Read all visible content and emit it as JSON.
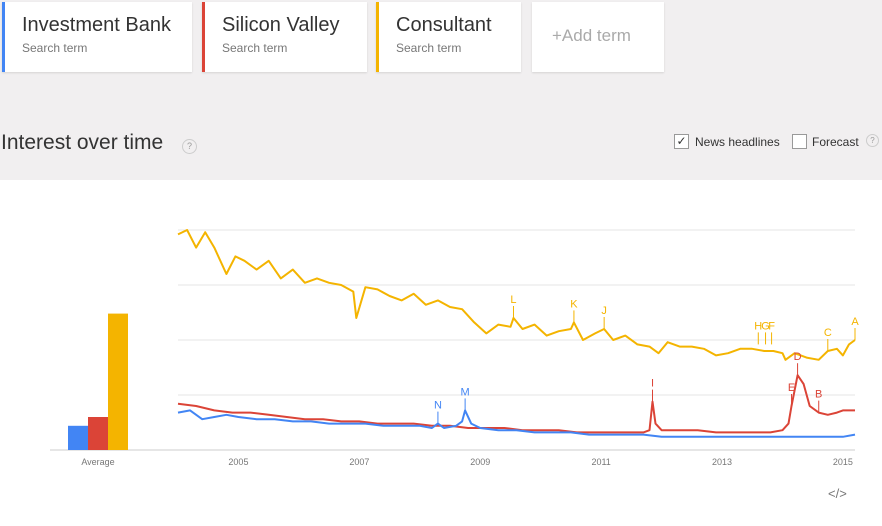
{
  "terms": [
    {
      "label": "Investment Bank",
      "sub": "Search term",
      "color": "#4285f4"
    },
    {
      "label": "Silicon Valley",
      "sub": "Search term",
      "color": "#db4437"
    },
    {
      "label": "Consultant",
      "sub": "Search term",
      "color": "#f4b400"
    }
  ],
  "add_term": "+Add term",
  "section_title": "Interest over time",
  "help_glyph": "?",
  "options": {
    "news_label": "News headlines",
    "news_checked": true,
    "forecast_label": "Forecast",
    "forecast_checked": false
  },
  "embed_glyph": "</>",
  "chart_data": {
    "type": "line",
    "ylim": [
      0,
      100
    ],
    "grid": true,
    "x_ticks": [
      "2005",
      "2007",
      "2009",
      "2011",
      "2013",
      "2015"
    ],
    "averages": {
      "label": "Average",
      "series": [
        {
          "name": "Investment Bank",
          "value": 11,
          "color": "#4285f4"
        },
        {
          "name": "Silicon Valley",
          "value": 15,
          "color": "#db4437"
        },
        {
          "name": "Consultant",
          "value": 62,
          "color": "#f4b400"
        }
      ]
    },
    "series": [
      {
        "name": "Consultant",
        "color": "#f4b400",
        "points": [
          [
            2004.0,
            98
          ],
          [
            2004.15,
            100
          ],
          [
            2004.3,
            92
          ],
          [
            2004.45,
            99
          ],
          [
            2004.6,
            92
          ],
          [
            2004.8,
            80
          ],
          [
            2004.95,
            88
          ],
          [
            2005.1,
            86
          ],
          [
            2005.3,
            82
          ],
          [
            2005.5,
            86
          ],
          [
            2005.7,
            78
          ],
          [
            2005.9,
            82
          ],
          [
            2006.1,
            76
          ],
          [
            2006.3,
            78
          ],
          [
            2006.5,
            76
          ],
          [
            2006.7,
            75
          ],
          [
            2006.9,
            72
          ],
          [
            2006.95,
            60
          ],
          [
            2007.1,
            74
          ],
          [
            2007.3,
            73
          ],
          [
            2007.5,
            70
          ],
          [
            2007.7,
            68
          ],
          [
            2007.9,
            71
          ],
          [
            2008.1,
            66
          ],
          [
            2008.3,
            68
          ],
          [
            2008.5,
            65
          ],
          [
            2008.7,
            64
          ],
          [
            2008.9,
            58
          ],
          [
            2009.1,
            53
          ],
          [
            2009.3,
            57
          ],
          [
            2009.5,
            56
          ],
          [
            2009.55,
            60
          ],
          [
            2009.7,
            55
          ],
          [
            2009.9,
            57
          ],
          [
            2010.1,
            52
          ],
          [
            2010.3,
            54
          ],
          [
            2010.5,
            55
          ],
          [
            2010.55,
            58
          ],
          [
            2010.7,
            50
          ],
          [
            2010.9,
            53
          ],
          [
            2011.05,
            55
          ],
          [
            2011.2,
            50
          ],
          [
            2011.4,
            52
          ],
          [
            2011.6,
            48
          ],
          [
            2011.8,
            47
          ],
          [
            2011.95,
            44
          ],
          [
            2012.1,
            49
          ],
          [
            2012.3,
            47
          ],
          [
            2012.5,
            47
          ],
          [
            2012.7,
            46
          ],
          [
            2012.9,
            43
          ],
          [
            2013.1,
            44
          ],
          [
            2013.3,
            46
          ],
          [
            2013.5,
            46
          ],
          [
            2013.7,
            45
          ],
          [
            2013.85,
            45
          ],
          [
            2014.0,
            44
          ],
          [
            2014.05,
            41
          ],
          [
            2014.2,
            44
          ],
          [
            2014.4,
            42
          ],
          [
            2014.6,
            41
          ],
          [
            2014.75,
            45
          ],
          [
            2014.9,
            46
          ],
          [
            2015.0,
            43
          ],
          [
            2015.1,
            48
          ],
          [
            2015.2,
            50
          ]
        ],
        "annotations": [
          {
            "label": "L",
            "x": 2009.55,
            "y": 60
          },
          {
            "label": "K",
            "x": 2010.55,
            "y": 58
          },
          {
            "label": "J",
            "x": 2011.05,
            "y": 55
          },
          {
            "label": "H",
            "x": 2013.6,
            "y": 48
          },
          {
            "label": "G",
            "x": 2013.72,
            "y": 48
          },
          {
            "label": "F",
            "x": 2013.82,
            "y": 48
          },
          {
            "label": "C",
            "x": 2014.75,
            "y": 45
          },
          {
            "label": "A",
            "x": 2015.2,
            "y": 50
          }
        ]
      },
      {
        "name": "Silicon Valley",
        "color": "#db4437",
        "points": [
          [
            2004.0,
            21
          ],
          [
            2004.3,
            20
          ],
          [
            2004.6,
            18
          ],
          [
            2004.9,
            17
          ],
          [
            2005.2,
            17
          ],
          [
            2005.5,
            16
          ],
          [
            2005.8,
            15
          ],
          [
            2006.1,
            14
          ],
          [
            2006.4,
            14
          ],
          [
            2006.7,
            13
          ],
          [
            2007.0,
            13
          ],
          [
            2007.3,
            12
          ],
          [
            2007.6,
            12
          ],
          [
            2007.9,
            12
          ],
          [
            2008.2,
            11
          ],
          [
            2008.5,
            11
          ],
          [
            2008.8,
            10
          ],
          [
            2009.1,
            10
          ],
          [
            2009.4,
            10
          ],
          [
            2009.7,
            9
          ],
          [
            2010.0,
            9
          ],
          [
            2010.3,
            9
          ],
          [
            2010.6,
            8
          ],
          [
            2010.9,
            8
          ],
          [
            2011.2,
            8
          ],
          [
            2011.5,
            8
          ],
          [
            2011.7,
            8
          ],
          [
            2011.8,
            9
          ],
          [
            2011.85,
            22
          ],
          [
            2011.9,
            12
          ],
          [
            2012.0,
            9
          ],
          [
            2012.3,
            9
          ],
          [
            2012.6,
            9
          ],
          [
            2012.9,
            8
          ],
          [
            2013.2,
            8
          ],
          [
            2013.5,
            8
          ],
          [
            2013.8,
            8
          ],
          [
            2014.0,
            9
          ],
          [
            2014.1,
            12
          ],
          [
            2014.15,
            20
          ],
          [
            2014.25,
            34
          ],
          [
            2014.35,
            30
          ],
          [
            2014.45,
            20
          ],
          [
            2014.6,
            17
          ],
          [
            2014.75,
            16
          ],
          [
            2014.9,
            17
          ],
          [
            2015.0,
            18
          ],
          [
            2015.2,
            18
          ]
        ],
        "annotations": [
          {
            "label": "I",
            "x": 2011.85,
            "y": 22
          },
          {
            "label": "E",
            "x": 2014.15,
            "y": 20
          },
          {
            "label": "D",
            "x": 2014.25,
            "y": 34
          },
          {
            "label": "B",
            "x": 2014.6,
            "y": 17
          }
        ]
      },
      {
        "name": "Investment Bank",
        "color": "#4285f4",
        "points": [
          [
            2004.0,
            17
          ],
          [
            2004.2,
            18
          ],
          [
            2004.4,
            14
          ],
          [
            2004.6,
            15
          ],
          [
            2004.8,
            16
          ],
          [
            2005.0,
            15
          ],
          [
            2005.3,
            14
          ],
          [
            2005.6,
            14
          ],
          [
            2005.9,
            13
          ],
          [
            2006.2,
            13
          ],
          [
            2006.5,
            12
          ],
          [
            2006.8,
            12
          ],
          [
            2007.1,
            12
          ],
          [
            2007.4,
            11
          ],
          [
            2007.7,
            11
          ],
          [
            2008.0,
            11
          ],
          [
            2008.2,
            10
          ],
          [
            2008.3,
            12
          ],
          [
            2008.4,
            10
          ],
          [
            2008.6,
            11
          ],
          [
            2008.7,
            13
          ],
          [
            2008.75,
            18
          ],
          [
            2008.85,
            12
          ],
          [
            2009.0,
            10
          ],
          [
            2009.3,
            9
          ],
          [
            2009.6,
            9
          ],
          [
            2009.9,
            8
          ],
          [
            2010.2,
            8
          ],
          [
            2010.5,
            8
          ],
          [
            2010.8,
            7
          ],
          [
            2011.1,
            7
          ],
          [
            2011.4,
            7
          ],
          [
            2011.7,
            7
          ],
          [
            2012.0,
            6
          ],
          [
            2012.3,
            6
          ],
          [
            2012.6,
            6
          ],
          [
            2012.9,
            6
          ],
          [
            2013.2,
            6
          ],
          [
            2013.5,
            6
          ],
          [
            2013.8,
            6
          ],
          [
            2014.1,
            6
          ],
          [
            2014.4,
            6
          ],
          [
            2014.7,
            6
          ],
          [
            2015.0,
            6
          ],
          [
            2015.2,
            7
          ]
        ],
        "annotations": [
          {
            "label": "N",
            "x": 2008.3,
            "y": 12
          },
          {
            "label": "M",
            "x": 2008.75,
            "y": 18
          }
        ]
      }
    ]
  }
}
